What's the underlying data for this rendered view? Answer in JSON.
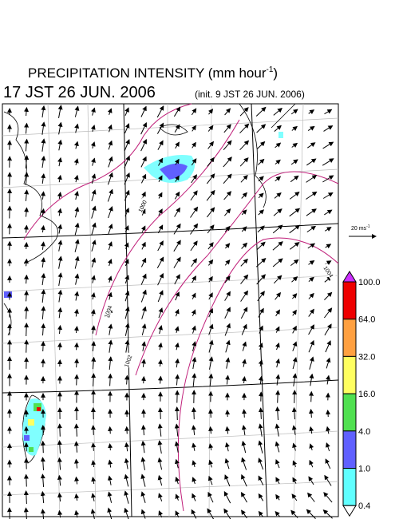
{
  "header": {
    "title": "PRECIPITATION INTENSITY (mm hour",
    "title_sup": "-1",
    "title_end": ")",
    "valid_time": "17 JST 26 JUN. 2006",
    "init_time": "(init. 9 JST 26 JUN. 2006)"
  },
  "scale": {
    "label": "20 ms",
    "label_sup": "-1"
  },
  "isobars": {
    "labels": [
      "1000",
      "1002",
      "1004",
      "1004"
    ]
  },
  "legend": {
    "labels": [
      "100.0",
      "64.0",
      "32.0",
      "16.0",
      "4.0",
      "1.0",
      "0.4"
    ],
    "colors": [
      "#ee0000",
      "#ffa040",
      "#ffff60",
      "#50e050",
      "#6060ff",
      "#60ffff"
    ],
    "over_color": "#cc30ff",
    "under_color": "#ffffff"
  }
}
